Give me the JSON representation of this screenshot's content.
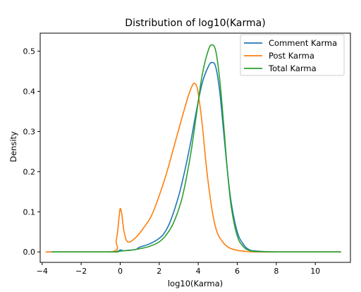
{
  "chart_data": {
    "type": "line",
    "title": "Distribution of log10(Karma)",
    "xlabel": "log10(Karma)",
    "ylabel": "Density",
    "xlim": [
      -4.1,
      11.8
    ],
    "ylim": [
      -0.026,
      0.545
    ],
    "xticks": [
      -4,
      -2,
      0,
      2,
      4,
      6,
      8,
      10
    ],
    "yticks": [
      0.0,
      0.1,
      0.2,
      0.3,
      0.4,
      0.5
    ],
    "ytick_labels": [
      "0.0",
      "0.1",
      "0.2",
      "0.3",
      "0.4",
      "0.5"
    ],
    "grid": false,
    "legend_position": "top-right",
    "series": [
      {
        "name": "Comment Karma",
        "color": "#1f77b4",
        "x": [
          -3.5,
          -1,
          -0.2,
          0,
          0.15,
          0.4,
          0.8,
          1.0,
          1.5,
          2.0,
          2.3,
          2.6,
          3.0,
          3.3,
          3.6,
          3.9,
          4.2,
          4.5,
          4.7,
          4.9,
          5.1,
          5.3,
          5.5,
          5.7,
          6.0,
          6.3,
          6.6,
          7.0,
          8.0,
          9.5,
          11.3
        ],
        "y": [
          0.0,
          0.0,
          0.001,
          0.005,
          0.003,
          0.004,
          0.006,
          0.012,
          0.02,
          0.034,
          0.05,
          0.08,
          0.14,
          0.2,
          0.27,
          0.35,
          0.42,
          0.46,
          0.472,
          0.46,
          0.4,
          0.3,
          0.2,
          0.12,
          0.05,
          0.02,
          0.006,
          0.002,
          0.0,
          0.0,
          0.0
        ]
      },
      {
        "name": "Post Karma",
        "color": "#ff7f0e",
        "x": [
          -3.8,
          -0.5,
          -0.2,
          -0.05,
          0.0,
          0.08,
          0.2,
          0.4,
          0.8,
          1.2,
          1.6,
          2.0,
          2.4,
          2.8,
          3.2,
          3.5,
          3.7,
          3.8,
          3.9,
          4.0,
          4.2,
          4.4,
          4.6,
          4.8,
          5.0,
          5.3,
          5.6,
          6.0,
          6.5,
          7.0,
          8.0,
          11.3
        ],
        "y": [
          0.0,
          0.0,
          0.03,
          0.09,
          0.108,
          0.095,
          0.05,
          0.025,
          0.036,
          0.06,
          0.09,
          0.14,
          0.2,
          0.27,
          0.34,
          0.39,
          0.415,
          0.42,
          0.415,
          0.395,
          0.32,
          0.22,
          0.14,
          0.08,
          0.045,
          0.022,
          0.01,
          0.004,
          0.001,
          0.0,
          0.0,
          0.0
        ]
      },
      {
        "name": "Total Karma",
        "color": "#2ca02c",
        "x": [
          -3.5,
          -1,
          -0.2,
          0,
          0.2,
          0.5,
          1.0,
          1.5,
          2.0,
          2.4,
          2.8,
          3.2,
          3.6,
          3.9,
          4.2,
          4.5,
          4.7,
          4.9,
          5.1,
          5.3,
          5.5,
          5.7,
          6.0,
          6.3,
          6.6,
          7.0,
          8.0,
          9.5,
          11.3
        ],
        "y": [
          0.0,
          0.0,
          0.0,
          0.002,
          0.003,
          0.004,
          0.008,
          0.014,
          0.025,
          0.045,
          0.08,
          0.14,
          0.24,
          0.34,
          0.44,
          0.5,
          0.516,
          0.5,
          0.43,
          0.32,
          0.2,
          0.11,
          0.04,
          0.014,
          0.004,
          0.001,
          0.0,
          0.0,
          0.0
        ]
      }
    ]
  }
}
